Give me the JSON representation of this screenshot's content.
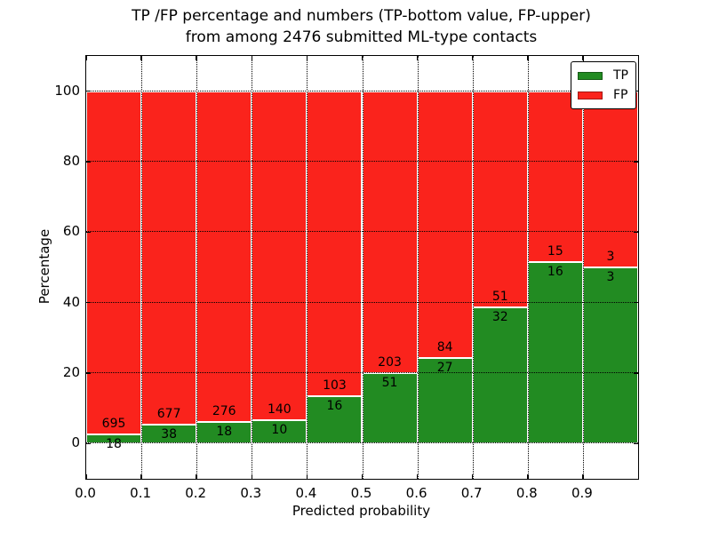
{
  "figure": {
    "title_line1": "TP /FP percentage and numbers (TP-bottom value, FP-upper)",
    "title_line2": "from among 2476 submitted ML-type contacts",
    "xlabel": "Predicted probability",
    "ylabel": "Percentage"
  },
  "legend": {
    "position": "upper-right",
    "entries": [
      {
        "label": "TP",
        "color": "#228b22"
      },
      {
        "label": "FP",
        "color": "#fa231c"
      }
    ]
  },
  "colors": {
    "tp_green": "#228b22",
    "fp_red": "#fa231c",
    "bar_edge": "#ffffff",
    "grid": "#000000",
    "spine": "#000000",
    "background": "#ffffff",
    "text": "#000000"
  },
  "chart_data": {
    "type": "bar",
    "subtype": "100-percent-stacked-histogram",
    "title": "TP /FP percentage and numbers (TP-bottom value, FP-upper) from among 2476 submitted ML-type contacts",
    "xlabel": "Predicted probability",
    "ylabel": "Percentage",
    "total_contacts": 2476,
    "xlim": [
      0.0,
      1.0
    ],
    "ylim": [
      -10,
      110
    ],
    "x_tick_labels": [
      "0.0",
      "0.1",
      "0.2",
      "0.3",
      "0.4",
      "0.5",
      "0.6",
      "0.7",
      "0.8",
      "0.9"
    ],
    "y_tick_values": [
      0,
      20,
      40,
      60,
      80,
      100
    ],
    "y_tick_labels": [
      "0",
      "20",
      "40",
      "60",
      "80",
      "100"
    ],
    "bin_edges": [
      0.0,
      0.1,
      0.2,
      0.3,
      0.4,
      0.5,
      0.6,
      0.7,
      0.8,
      0.9,
      1.0
    ],
    "categories": [
      "0.0-0.1",
      "0.1-0.2",
      "0.2-0.3",
      "0.3-0.4",
      "0.4-0.5",
      "0.5-0.6",
      "0.6-0.7",
      "0.7-0.8",
      "0.8-0.9",
      "0.9-1.0"
    ],
    "series": [
      {
        "name": "TP",
        "color": "#228b22",
        "stack_position": "bottom",
        "counts": [
          18,
          38,
          18,
          10,
          16,
          51,
          27,
          32,
          16,
          3
        ]
      },
      {
        "name": "FP",
        "color": "#fa231c",
        "stack_position": "top",
        "counts": [
          695,
          677,
          276,
          140,
          103,
          203,
          84,
          51,
          15,
          3
        ]
      }
    ],
    "tp_percent_of_bin": [
      2.52,
      5.31,
      6.12,
      6.67,
      13.45,
      20.08,
      24.32,
      38.55,
      51.61,
      50.0
    ],
    "bar_total_percent": 100,
    "grid": {
      "style": "dotted",
      "color": "#000000",
      "drawn_above_bars": true
    },
    "legend_position": "upper-right"
  }
}
